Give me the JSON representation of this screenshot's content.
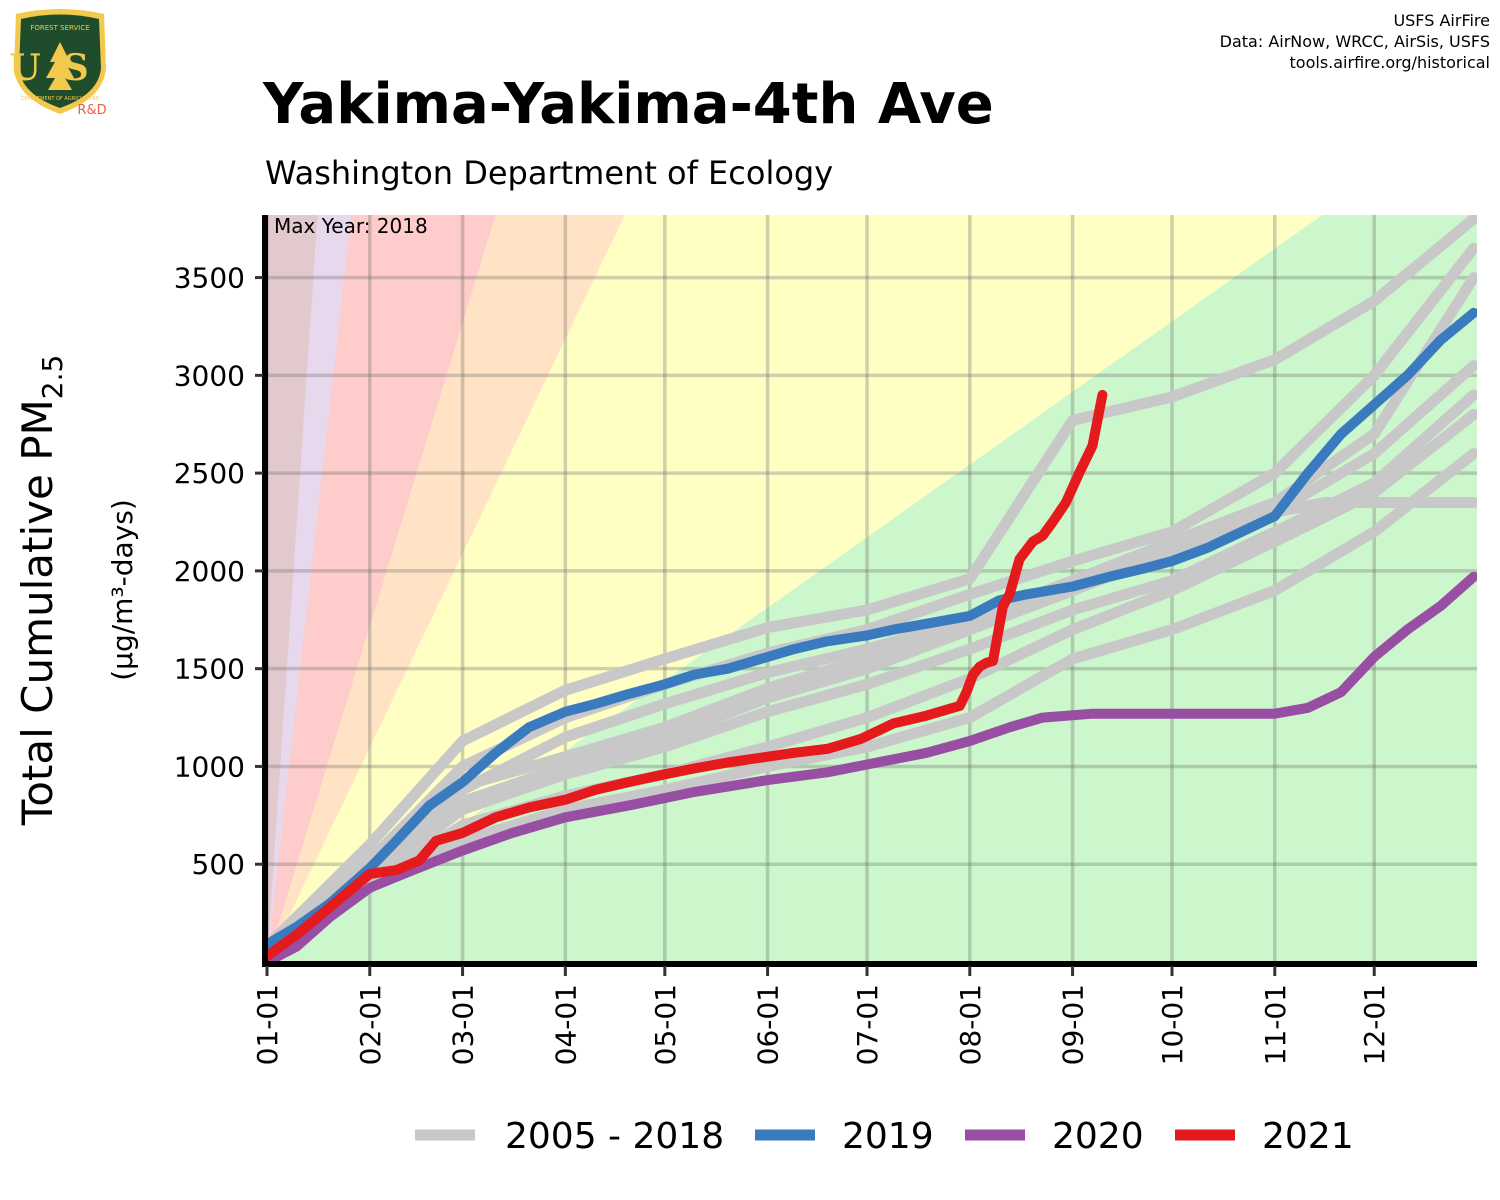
{
  "header": {
    "title": "Yakima-Yakima-4th Ave",
    "subtitle": "Washington Department of Ecology",
    "credits": [
      "USFS AirFire",
      "Data: AirNow, WRCC, AirSis, USFS",
      "tools.airfire.org/historical"
    ]
  },
  "logo": {
    "top_text": "FOREST SERVICE",
    "letters": "US",
    "bottom_text": "DEPARTMENT OF AGRICULTURE",
    "tag": "R&D"
  },
  "colors": {
    "historical": "#c8c8c8",
    "y2019": "#3a7bbf",
    "y2020": "#984ea3",
    "y2021": "#e41a1c",
    "bands": [
      "#ccf7cc",
      "#ffffc4",
      "#ffe3c4",
      "#ffcccc",
      "#e8d8ee",
      "#e2c9cd"
    ]
  },
  "chart_data": {
    "type": "line",
    "ylabel_main": "Total Cumulative PM",
    "ylabel_sub": "2.5",
    "ylabel_units": "(μg/m³-days)",
    "annotation": "Max Year: 2018",
    "x_ticks": [
      "01-01",
      "02-01",
      "03-01",
      "04-01",
      "05-01",
      "06-01",
      "07-01",
      "08-01",
      "09-01",
      "10-01",
      "11-01",
      "12-01"
    ],
    "x_tick_days": [
      1,
      32,
      60,
      91,
      121,
      152,
      182,
      213,
      244,
      274,
      305,
      335
    ],
    "xlim": [
      1,
      366
    ],
    "y_ticks": [
      500,
      1000,
      1500,
      2000,
      2500,
      3000,
      3500
    ],
    "ylim": [
      0,
      3820
    ],
    "aqi_band_slopes": [
      12,
      35.4,
      55.4,
      150.4,
      250.4
    ],
    "legend": [
      "2005 - 2018",
      "2019",
      "2020",
      "2021"
    ],
    "series": [
      {
        "name": "2005 - 2018",
        "role": "historical",
        "x": [
          1,
          32,
          60,
          91,
          121,
          152,
          182,
          213,
          244,
          274,
          305,
          335,
          365
        ],
        "y": [
          80,
          600,
          1130,
          1390,
          1550,
          1710,
          1800,
          1960,
          2770,
          2890,
          3080,
          3380,
          3800
        ]
      },
      {
        "role": "historical",
        "x": [
          1,
          32,
          60,
          91,
          121,
          152,
          182,
          213,
          244,
          274,
          305,
          335,
          365
        ],
        "y": [
          60,
          520,
          1000,
          1250,
          1420,
          1580,
          1700,
          1880,
          2050,
          2200,
          2500,
          3000,
          3650
        ]
      },
      {
        "role": "historical",
        "x": [
          1,
          32,
          60,
          91,
          121,
          152,
          182,
          213,
          244,
          274,
          305,
          335,
          365
        ],
        "y": [
          40,
          480,
          880,
          1150,
          1320,
          1480,
          1600,
          1750,
          1950,
          2150,
          2350,
          2700,
          3500
        ]
      },
      {
        "role": "historical",
        "x": [
          1,
          32,
          60,
          91,
          121,
          152,
          182,
          213,
          244,
          274,
          305,
          335,
          365
        ],
        "y": [
          50,
          470,
          900,
          1050,
          1200,
          1400,
          1550,
          1700,
          1900,
          2100,
          2300,
          2600,
          3050
        ]
      },
      {
        "role": "historical",
        "x": [
          1,
          32,
          60,
          91,
          121,
          152,
          182,
          213,
          244,
          274,
          305,
          335,
          365
        ],
        "y": [
          30,
          430,
          780,
          960,
          1100,
          1280,
          1420,
          1600,
          1800,
          1950,
          2200,
          2450,
          2900
        ]
      },
      {
        "role": "historical",
        "x": [
          1,
          32,
          60,
          91,
          121,
          152,
          182,
          213,
          244,
          274,
          305,
          335,
          365
        ],
        "y": [
          30,
          400,
          700,
          850,
          960,
          1100,
          1250,
          1450,
          1700,
          1900,
          2150,
          2400,
          2800
        ]
      },
      {
        "role": "historical",
        "x": [
          1,
          32,
          60,
          91,
          121,
          152,
          182,
          213,
          244,
          274,
          305,
          335,
          365
        ],
        "y": [
          20,
          380,
          620,
          780,
          880,
          1000,
          1100,
          1250,
          1550,
          1700,
          1900,
          2200,
          2600
        ]
      },
      {
        "role": "historical",
        "x": [
          1,
          32,
          60,
          91,
          121,
          152,
          182,
          213,
          244,
          274,
          305,
          320,
          365
        ],
        "y": [
          40,
          450,
          820,
          1000,
          1150,
          1350,
          1500,
          1700,
          1900,
          2100,
          2300,
          2350,
          2350
        ]
      },
      {
        "name": "2019",
        "role": "y2019",
        "x": [
          1,
          10,
          20,
          32,
          40,
          50,
          60,
          70,
          80,
          91,
          100,
          110,
          121,
          130,
          140,
          152,
          160,
          170,
          182,
          190,
          200,
          213,
          222,
          230,
          244,
          255,
          265,
          274,
          285,
          295,
          305,
          315,
          325,
          335,
          345,
          355,
          365
        ],
        "y": [
          90,
          180,
          300,
          480,
          620,
          800,
          920,
          1070,
          1200,
          1280,
          1320,
          1370,
          1420,
          1470,
          1500,
          1560,
          1600,
          1640,
          1670,
          1700,
          1730,
          1770,
          1850,
          1880,
          1920,
          1970,
          2010,
          2050,
          2120,
          2200,
          2280,
          2500,
          2700,
          2850,
          3000,
          3180,
          3320
        ]
      },
      {
        "name": "2020",
        "role": "y2020",
        "x": [
          1,
          10,
          20,
          32,
          45,
          60,
          75,
          91,
          110,
          130,
          152,
          170,
          182,
          200,
          213,
          225,
          235,
          250,
          270,
          290,
          305,
          315,
          325,
          335,
          345,
          355,
          365
        ],
        "y": [
          0,
          80,
          230,
          380,
          470,
          570,
          660,
          740,
          800,
          870,
          930,
          970,
          1010,
          1070,
          1130,
          1200,
          1250,
          1270,
          1270,
          1270,
          1270,
          1300,
          1380,
          1560,
          1700,
          1820,
          1970
        ]
      },
      {
        "name": "2021",
        "role": "y2021",
        "x": [
          1,
          10,
          20,
          32,
          40,
          47,
          52,
          60,
          70,
          80,
          91,
          100,
          110,
          121,
          130,
          140,
          152,
          160,
          170,
          180,
          185,
          190,
          200,
          210,
          212,
          214,
          216,
          218,
          220,
          223,
          225,
          228,
          232,
          235,
          238,
          242,
          246,
          250,
          253
        ],
        "y": [
          30,
          140,
          280,
          450,
          470,
          520,
          620,
          660,
          740,
          790,
          830,
          880,
          920,
          960,
          990,
          1020,
          1050,
          1070,
          1090,
          1140,
          1180,
          1220,
          1260,
          1310,
          1380,
          1470,
          1510,
          1530,
          1540,
          1820,
          1880,
          2060,
          2150,
          2180,
          2250,
          2350,
          2500,
          2640,
          2900
        ]
      }
    ]
  }
}
